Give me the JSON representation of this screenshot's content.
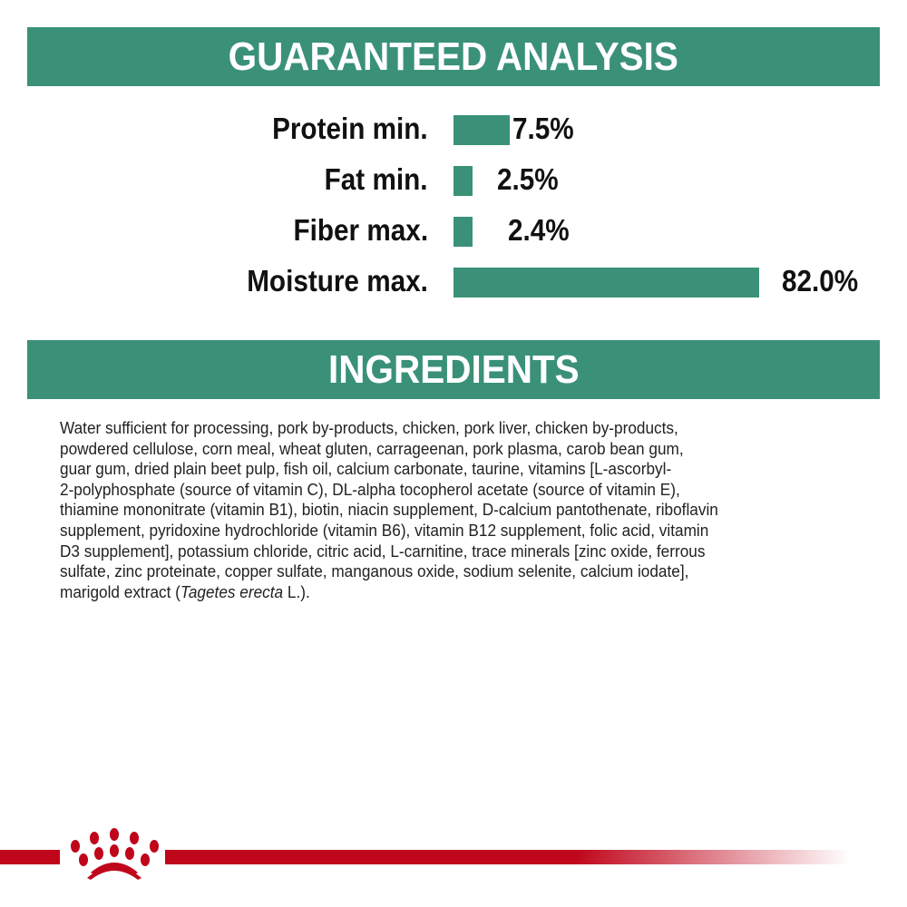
{
  "guaranteed_analysis": {
    "title": "GUARANTEED ANALYSIS",
    "items": [
      {
        "label": "Protein min.",
        "value": "7.5%"
      },
      {
        "label": "Fat min.",
        "value": "2.5%"
      },
      {
        "label": "Fiber max.",
        "value": "2.4%"
      },
      {
        "label": "Moisture max.",
        "value": "82.0%"
      }
    ],
    "bar_color": "#3a9178"
  },
  "ingredients": {
    "title": "INGREDIENTS",
    "lines": [
      "Water sufficient for processing, pork by-products, chicken, pork liver, chicken by-products,",
      "powdered cellulose, corn meal, wheat gluten, carrageenan, pork plasma, carob bean gum,",
      "guar gum, dried plain beet pulp, fish oil, calcium carbonate, taurine, vitamins [L-ascorbyl-",
      "2-polyphosphate (source of vitamin C), DL-alpha tocopherol acetate (source of vitamin E),",
      "thiamine mononitrate (vitamin B1), biotin, niacin supplement, D-calcium pantothenate, riboflavin",
      "supplement, pyridoxine hydrochloride (vitamin B6), vitamin B12 supplement, folic acid, vitamin",
      "D3 supplement], potassium chloride, citric acid, L-carnitine, trace minerals [zinc oxide, ferrous",
      "sulfate, zinc proteinate, copper sulfate, manganous oxide, sodium selenite, calcium iodate],"
    ],
    "last_line_prefix": "marigold extract (",
    "last_line_italic": "Tagetes erecta",
    "last_line_suffix": " L.)."
  },
  "footer": {
    "logo": "royal-canin-crown-paw-icon",
    "stripe_color": "#c0061b"
  }
}
